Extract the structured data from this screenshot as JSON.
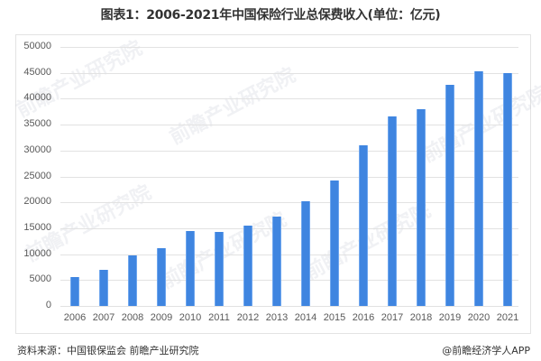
{
  "title": "图表1：2006-2021年中国保险行业总保费收入(单位：亿元)",
  "source": "资料来源：中国银保监会 前瞻产业研究院",
  "credit": "@前瞻经济学人APP",
  "watermark": "前瞻产业研究院",
  "colors": {
    "bar": "#3f85e0",
    "grid": "#e2e2e2",
    "frame": "#e3e3e3",
    "text": "#595959"
  },
  "chart_data": {
    "type": "bar",
    "title": "图表1：2006-2021年中国保险行业总保费收入(单位：亿元)",
    "xlabel": "",
    "ylabel": "亿元",
    "categories": [
      "2006",
      "2007",
      "2008",
      "2009",
      "2010",
      "2011",
      "2012",
      "2013",
      "2014",
      "2015",
      "2016",
      "2017",
      "2018",
      "2019",
      "2020",
      "2021"
    ],
    "values": [
      5640,
      7036,
      9784,
      11137,
      14528,
      14339,
      15488,
      17222,
      20235,
      24283,
      30959,
      36581,
      38017,
      42645,
      45257,
      44900
    ],
    "ylim": [
      0,
      50000
    ],
    "yticks": [
      0,
      5000,
      10000,
      15000,
      20000,
      25000,
      30000,
      35000,
      40000,
      45000,
      50000
    ],
    "grid": true,
    "legend": null
  }
}
